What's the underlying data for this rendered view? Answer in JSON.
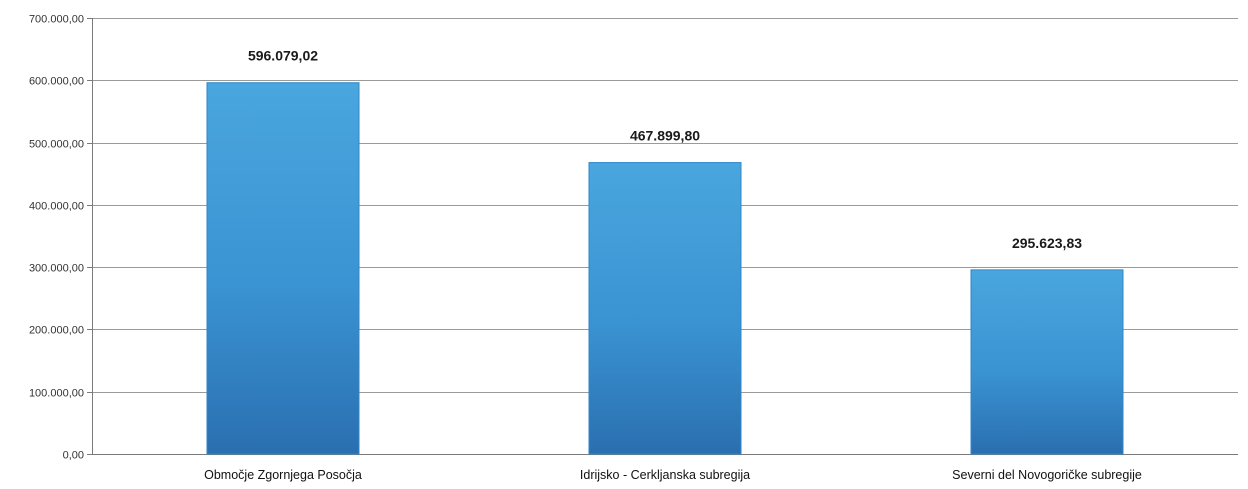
{
  "chart_data": {
    "type": "bar",
    "categories": [
      "Območje Zgornjega Posočja",
      "Idrijsko - Cerkljanska subregija",
      "Severni del Novogoričke subregije"
    ],
    "values": [
      596079.02,
      467899.8,
      295623.83
    ],
    "data_labels": [
      "596.079,02",
      "467.899,80",
      "295.623,83"
    ],
    "y_ticks": [
      0,
      100000,
      200000,
      300000,
      400000,
      500000,
      600000,
      700000
    ],
    "y_tick_labels": [
      "0,00",
      "100.000,00",
      "200.000,00",
      "300.000,00",
      "400.000,00",
      "500.000,00",
      "600.000,00",
      "700.000,00"
    ],
    "ylim": [
      0,
      700000
    ],
    "title": "",
    "xlabel": "",
    "ylabel": "",
    "grid": true,
    "legend": "none",
    "colors": {
      "bar_top": "#4aa6de",
      "bar_mid": "#3a93d2",
      "bar_bottom": "#2a6fb0",
      "bar_edge": "#2f86c8"
    }
  }
}
